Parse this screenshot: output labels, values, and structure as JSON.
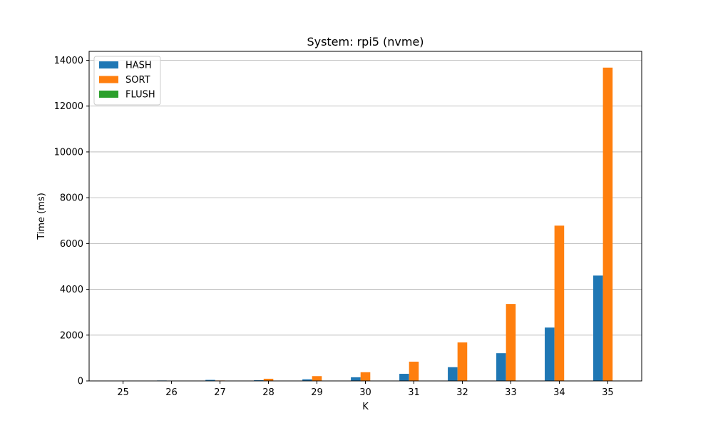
{
  "chart_data": {
    "type": "bar",
    "title": "System: rpi5 (nvme)",
    "xlabel": "K",
    "ylabel": "Time (ms)",
    "categories": [
      "25",
      "26",
      "27",
      "28",
      "29",
      "30",
      "31",
      "32",
      "33",
      "34",
      "35"
    ],
    "series": [
      {
        "name": "HASH",
        "color": "#1f77b4",
        "values": [
          10,
          20,
          45,
          30,
          70,
          160,
          310,
          600,
          1210,
          2330,
          4600
        ]
      },
      {
        "name": "SORT",
        "color": "#ff7f0e",
        "values": [
          5,
          12,
          20,
          95,
          210,
          380,
          840,
          1680,
          3360,
          6780,
          13680
        ]
      },
      {
        "name": "FLUSH",
        "color": "#2ca02c",
        "values": [
          0,
          0,
          0,
          0,
          0,
          0,
          0,
          0,
          0,
          0,
          0
        ]
      }
    ],
    "ylim": [
      0,
      14390
    ],
    "yticks": [
      0,
      2000,
      4000,
      6000,
      8000,
      10000,
      12000,
      14000
    ],
    "ytick_labels": [
      "0",
      "2000",
      "4000",
      "6000",
      "8000",
      "10000",
      "12000",
      "14000"
    ],
    "grid": "y",
    "legend_position": "top-left"
  }
}
